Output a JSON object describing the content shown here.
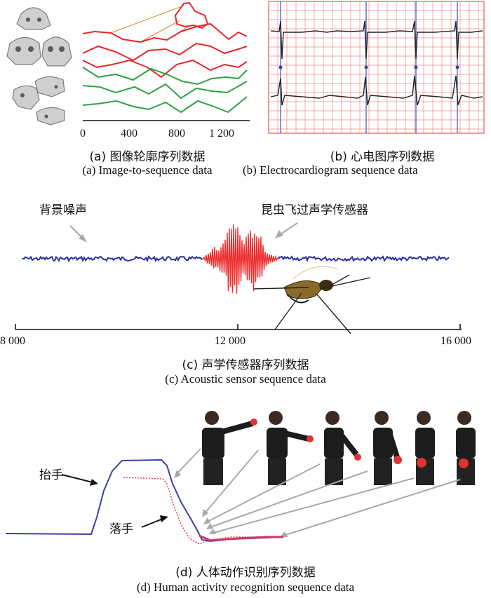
{
  "panel_a": {
    "caption_cn": "(a) 图像轮廓序列数据",
    "caption_en": "(a) Image-to-sequence data",
    "x_ticks": [
      "0",
      "400",
      "800",
      "1 200"
    ],
    "colors": {
      "red": "#e8262a",
      "green": "#2ea043",
      "connector": "#d9822b"
    }
  },
  "panel_b": {
    "caption_cn": "(b) 心电图序列数据",
    "caption_en": "(b) Electrocardiogram sequence data",
    "colors": {
      "grid": "#e35a5a",
      "beat": "#4a5fc1",
      "trace": "#222222"
    }
  },
  "panel_c": {
    "label_noise": "背景噪声",
    "label_insect": "昆虫飞过声学传感器",
    "x_ticks": [
      "8 000",
      "12 000",
      "16 000"
    ],
    "caption_cn": "(c) 声学传感器序列数据",
    "caption_en": "(c) Acoustic sensor sequence data",
    "colors": {
      "noise": "#2b2f9e",
      "signal": "#ee2a2a"
    }
  },
  "panel_d": {
    "label_raise": "抬手",
    "label_lower": "落手",
    "caption_cn": "(d) 人体动作识别序列数据",
    "caption_en": "(d) Human activity recognition sequence data",
    "colors": {
      "signal": "#3a3fa6",
      "dotted": "#e63a3a",
      "arrow": "#a9a9a9"
    }
  }
}
